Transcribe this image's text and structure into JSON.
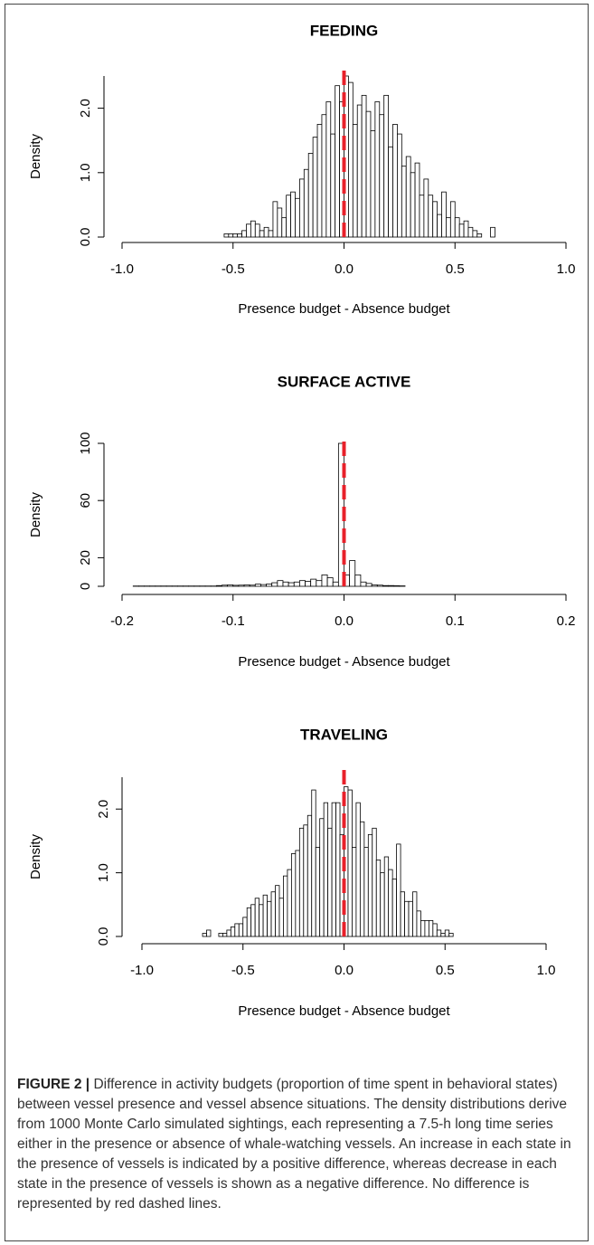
{
  "charts": [
    {
      "chart_data": {
        "type": "histogram",
        "title": "FEEDING",
        "xlabel": "Presence budget - Absence budget",
        "ylabel": "Density",
        "bins": [
          -0.54,
          -0.52,
          -0.5,
          -0.48,
          -0.46,
          -0.44,
          -0.42,
          -0.4,
          -0.38,
          -0.36,
          -0.34,
          -0.32,
          -0.3,
          -0.28,
          -0.26,
          -0.24,
          -0.22,
          -0.2,
          -0.18,
          -0.16,
          -0.14,
          -0.12,
          -0.1,
          -0.08,
          -0.06,
          -0.04,
          -0.02,
          0,
          0.02,
          0.04,
          0.06,
          0.08,
          0.1,
          0.12,
          0.14,
          0.16,
          0.18,
          0.2,
          0.22,
          0.24,
          0.26,
          0.28,
          0.3,
          0.32,
          0.34,
          0.36,
          0.38,
          0.4,
          0.42,
          0.44,
          0.46,
          0.48,
          0.5,
          0.52,
          0.54,
          0.56,
          0.58,
          0.6,
          0.62,
          0.64,
          0.66,
          0.68
        ],
        "values": [
          0.05,
          0.05,
          0.05,
          0.05,
          0.1,
          0.2,
          0.25,
          0.2,
          0.1,
          0.15,
          0.1,
          0.55,
          0.45,
          0.3,
          0.65,
          0.7,
          0.6,
          0.9,
          1.05,
          1.3,
          1.55,
          1.75,
          1.9,
          2.1,
          1.6,
          2.35,
          2.1,
          2.5,
          2.4,
          1.75,
          2.05,
          2.2,
          1.95,
          1.65,
          2.1,
          1.9,
          2.2,
          1.4,
          1.75,
          1.6,
          1.1,
          1.25,
          1.0,
          1.15,
          0.65,
          0.9,
          0.65,
          0.55,
          0.35,
          0.7,
          0.3,
          0.55,
          0.3,
          0.2,
          0.25,
          0.15,
          0.1,
          0.05,
          0,
          0,
          0.15
        ],
        "color": "#ffffff",
        "edgecolor": "#000000",
        "refline": 0,
        "refline_color": "#e8202a",
        "xlim": [
          -1,
          1
        ],
        "xticks": [
          {
            "value": -1,
            "label": "-1.0"
          },
          -0.5,
          {
            "value": 0,
            "label": "0.0"
          },
          0.5,
          {
            "value": 1,
            "label": "1.0"
          }
        ],
        "ylim": [
          0,
          2.5
        ],
        "yticks": [
          {
            "value": 0,
            "label": "0.0"
          },
          {
            "value": 1,
            "label": "1.0"
          },
          {
            "value": 2,
            "label": "2.0"
          }
        ]
      }
    },
    {
      "chart_data": {
        "type": "histogram",
        "title": "SURFACE ACTIVE",
        "xlabel": "Presence budget - Absence budget",
        "ylabel": "Density",
        "bins": [
          -0.19,
          -0.185,
          -0.18,
          -0.175,
          -0.17,
          -0.165,
          -0.16,
          -0.155,
          -0.15,
          -0.145,
          -0.14,
          -0.135,
          -0.13,
          -0.125,
          -0.12,
          -0.115,
          -0.11,
          -0.105,
          -0.1,
          -0.095,
          -0.09,
          -0.085,
          -0.08,
          -0.075,
          -0.07,
          -0.065,
          -0.06,
          -0.055,
          -0.05,
          -0.045,
          -0.04,
          -0.035,
          -0.03,
          -0.025,
          -0.02,
          -0.015,
          -0.01,
          -0.005,
          0,
          0.005,
          0.01,
          0.015,
          0.02,
          0.025,
          0.03,
          0.035,
          0.04,
          0.045,
          0.05,
          0.055
        ],
        "values": [
          0.2,
          0.2,
          0.2,
          0.2,
          0.2,
          0.2,
          0.2,
          0.2,
          0.2,
          0.2,
          0.2,
          0.2,
          0.2,
          0.2,
          0.2,
          0.5,
          0.8,
          1,
          0.7,
          0.8,
          1,
          0.8,
          1.5,
          1.2,
          1.6,
          2.5,
          4,
          3,
          2.5,
          3,
          4,
          3.5,
          5,
          4,
          8,
          6,
          3,
          100,
          8,
          18,
          8,
          3,
          2,
          1,
          0.8,
          0.5,
          0.5,
          0.4,
          0.3
        ],
        "color": "#ffffff",
        "edgecolor": "#000000",
        "refline": 0,
        "refline_color": "#e8202a",
        "xlim": [
          -0.2,
          0.2
        ],
        "xticks": [
          -0.2,
          -0.1,
          {
            "value": 0,
            "label": "0.0"
          },
          0.1,
          0.2
        ],
        "ylim": [
          0,
          100
        ],
        "yticks": [
          0,
          20,
          60,
          100
        ]
      }
    },
    {
      "chart_data": {
        "type": "histogram",
        "title": "TRAVELING",
        "xlabel": "Presence budget - Absence budget",
        "ylabel": "Density",
        "bins": [
          -0.7,
          -0.68,
          -0.66,
          -0.64,
          -0.62,
          -0.6,
          -0.58,
          -0.56,
          -0.54,
          -0.52,
          -0.5,
          -0.48,
          -0.46,
          -0.44,
          -0.42,
          -0.4,
          -0.38,
          -0.36,
          -0.34,
          -0.32,
          -0.3,
          -0.28,
          -0.26,
          -0.24,
          -0.22,
          -0.2,
          -0.18,
          -0.16,
          -0.14,
          -0.12,
          -0.1,
          -0.08,
          -0.06,
          -0.04,
          -0.02,
          0,
          0.02,
          0.04,
          0.06,
          0.08,
          0.1,
          0.12,
          0.14,
          0.16,
          0.18,
          0.2,
          0.22,
          0.24,
          0.26,
          0.28,
          0.3,
          0.32,
          0.34,
          0.36,
          0.38,
          0.4,
          0.42,
          0.44,
          0.46,
          0.48,
          0.5,
          0.52,
          0.54
        ],
        "values": [
          0.05,
          0.1,
          0.0,
          0.0,
          0.05,
          0.05,
          0.1,
          0.15,
          0.2,
          0.2,
          0.3,
          0.45,
          0.5,
          0.6,
          0.5,
          0.65,
          0.55,
          0.7,
          0.8,
          0.6,
          0.95,
          1.05,
          1.3,
          1.35,
          1.7,
          1.75,
          1.9,
          2.3,
          1.4,
          1.85,
          2.1,
          1.7,
          2.1,
          2.1,
          1.6,
          2.35,
          2.3,
          1.4,
          2.1,
          1.8,
          1.4,
          1.6,
          1.7,
          1.2,
          1.0,
          1.25,
          1.05,
          0.9,
          1.45,
          0.7,
          0.55,
          0.55,
          0.7,
          0.4,
          0.25,
          0.25,
          0.25,
          0.2,
          0.1,
          0.05,
          0.1,
          0.05
        ],
        "color": "#ffffff",
        "edgecolor": "#000000",
        "refline": 0,
        "refline_color": "#e8202a",
        "xlim": [
          -1,
          1
        ],
        "xticks": [
          {
            "value": -1,
            "label": "-1.0"
          },
          -0.5,
          {
            "value": 0,
            "label": "0.0"
          },
          0.5,
          {
            "value": 1,
            "label": "1.0"
          }
        ],
        "ylim": [
          0,
          2.5
        ],
        "yticks": [
          {
            "value": 0,
            "label": "0.0"
          },
          {
            "value": 1,
            "label": "1.0"
          },
          {
            "value": 2,
            "label": "2.0"
          }
        ]
      }
    }
  ],
  "caption": {
    "label": "FIGURE 2 |",
    "text": "Difference in activity budgets (proportion of time spent in behavioral states) between vessel presence and vessel absence situations. The density distributions derive from 1000 Monte Carlo simulated sightings, each representing a 7.5-h long time series either in the presence or absence of whale-watching vessels. An increase in each state in the presence of vessels is indicated by a positive difference, whereas decrease in each state in the presence of vessels is shown as a negative difference. No difference is represented by red dashed lines."
  }
}
